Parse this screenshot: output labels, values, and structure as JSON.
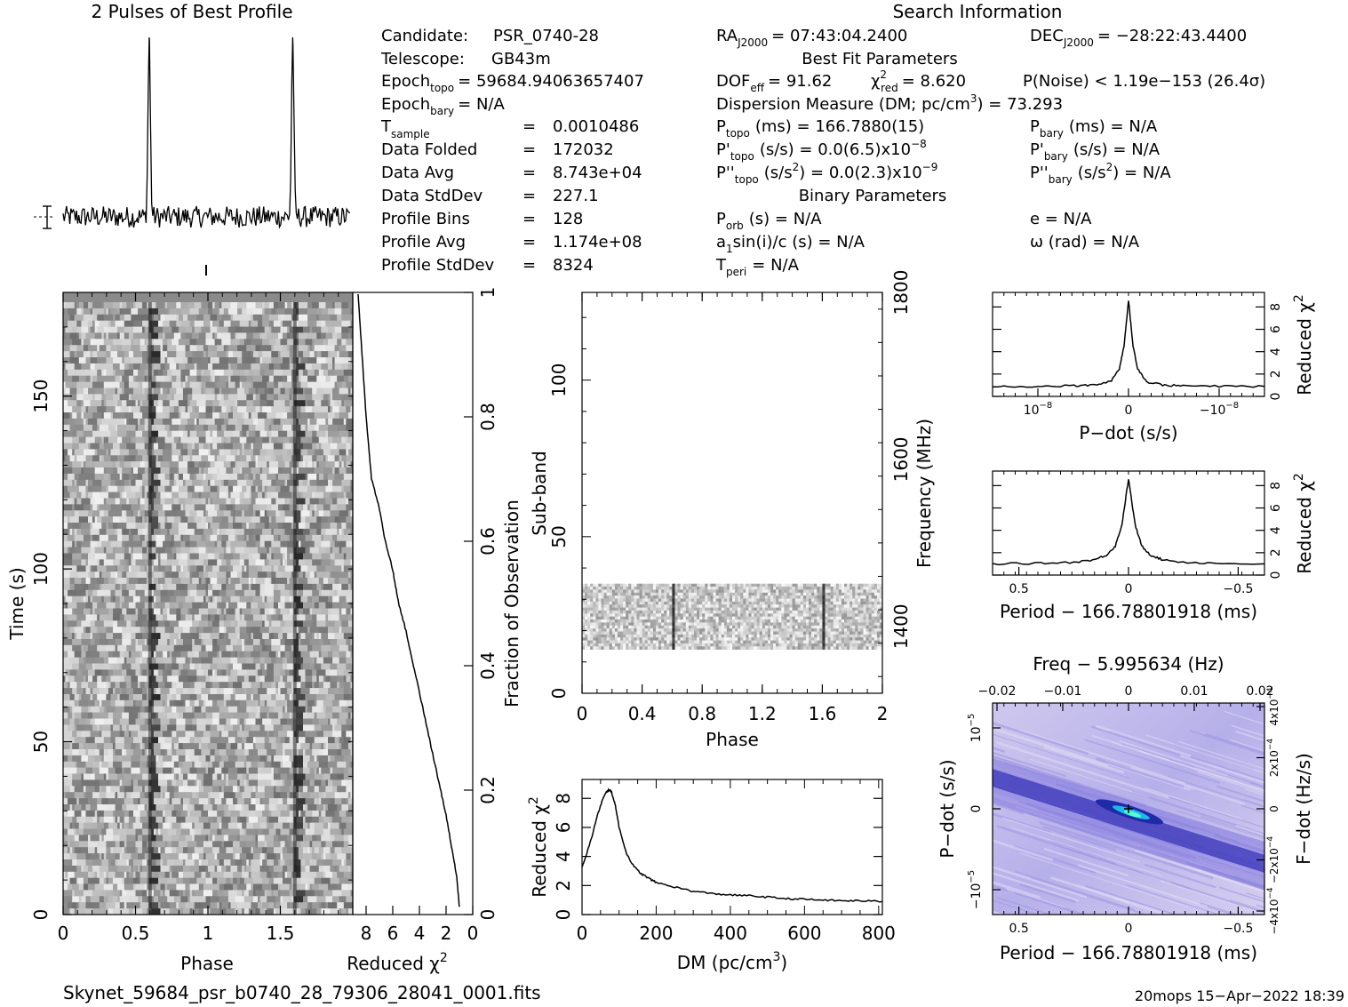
{
  "profile_panel": {
    "title": "2 Pulses of Best Profile"
  },
  "search_info": {
    "title": "Search Information",
    "candidate": {
      "label": "Candidate:",
      "value": "PSR_0740-28"
    },
    "telescope": {
      "label": "Telescope:",
      "value": "GB43m"
    },
    "epoch_topo": {
      "label": "Epoch",
      "sub": "topo",
      "value": "= 59684.94063657407"
    },
    "epoch_bary": {
      "label": "Epoch",
      "sub": "bary",
      "value": "= N/A"
    },
    "t_sample": {
      "label": "T",
      "sub": "sample",
      "eq": "=",
      "value": "0.0010486"
    },
    "data_folded": {
      "label": "Data Folded",
      "eq": "=",
      "value": "172032"
    },
    "data_avg": {
      "label": "Data Avg",
      "eq": "=",
      "value": "8.743e+04"
    },
    "data_stddev": {
      "label": "Data StdDev",
      "eq": "=",
      "value": "227.1"
    },
    "profile_bins": {
      "label": "Profile Bins",
      "eq": "=",
      "value": "128"
    },
    "profile_avg": {
      "label": "Profile Avg",
      "eq": "=",
      "value": "1.174e+08"
    },
    "profile_stddev": {
      "label": "Profile StdDev",
      "eq": "=",
      "value": "8324"
    },
    "ra": {
      "label": "RA",
      "sub": "J2000",
      "value": "= 07:43:04.2400"
    },
    "dec": {
      "label": "DEC",
      "sub": "J2000",
      "value": "= −28:22:43.4400"
    },
    "best_fit_title": "Best Fit Parameters",
    "dof": {
      "label": "DOF",
      "sub": "eff",
      "value": "= 91.62"
    },
    "chi2": {
      "label": "χ",
      "sup": "2",
      "sub": "red",
      "value": "= 8.620"
    },
    "pnoise": {
      "value": "P(Noise) < 1.19e−153  (26.4σ)"
    },
    "dm_line": {
      "text": "Dispersion Measure (DM; pc/cm",
      "sup": "3",
      "tail": ") = 73.293"
    },
    "ptopo": {
      "label": "P",
      "sub": "topo",
      "value": "(ms) =  166.7880(15)"
    },
    "pbary": {
      "label": "P",
      "sub": "bary",
      "value": "(ms) = N/A"
    },
    "pdtopo": {
      "label": "P'",
      "sub": "topo",
      "value": "(s/s) = 0.0(6.5)x10",
      "sup": "−8"
    },
    "pdbary": {
      "label": "P'",
      "sub": "bary",
      "value": "(s/s) = N/A"
    },
    "pddtopo": {
      "label": "P''",
      "sub": "topo",
      "value": "(s/s",
      "sup": "2",
      "tail": ") = 0.0(2.3)x10",
      "sup2": "−9"
    },
    "pddbary": {
      "label": "P''",
      "sub": "bary",
      "value": "(s/s",
      "sup": "2",
      "tail": ") = N/A"
    },
    "binary_title": "Binary Parameters",
    "porb": {
      "label": "P",
      "sub": "orb",
      "value": "(s) = N/A"
    },
    "e": {
      "value": "e = N/A"
    },
    "a1sini": {
      "label": "a",
      "sub": "1",
      "value": "sin(i)/c (s) = N/A"
    },
    "omega": {
      "value": "ω (rad) = N/A"
    },
    "tperi": {
      "label": "T",
      "sub": "peri",
      "value": "= N/A"
    }
  },
  "footer": {
    "filename": "Skynet_59684_psr_b0740_28_79306_28041_0001.fits",
    "stamp": "20mops 15−Apr−2022 18:39"
  },
  "chart_data": [
    {
      "name": "best-profile",
      "type": "line",
      "title": "2 Pulses of Best Profile",
      "x": [
        0.0,
        0.1,
        0.2,
        0.3,
        0.4,
        0.5,
        0.55,
        0.58,
        0.6,
        0.62,
        0.65,
        0.7,
        0.8,
        0.9,
        1.0,
        1.1,
        1.2,
        1.3,
        1.4,
        1.5,
        1.55,
        1.58,
        1.6,
        1.62,
        1.65,
        1.7,
        1.8,
        1.9,
        2.0
      ],
      "y": [
        0.0,
        0.03,
        -0.02,
        0.04,
        -0.03,
        0.02,
        0.08,
        0.7,
        1.0,
        0.6,
        0.05,
        -0.02,
        0.03,
        -0.04,
        0.0,
        0.03,
        -0.02,
        0.04,
        -0.03,
        0.02,
        0.08,
        0.7,
        1.0,
        0.6,
        0.05,
        -0.02,
        0.03,
        -0.04,
        0.0
      ],
      "xlim": [
        0,
        2
      ]
    },
    {
      "name": "time-phase",
      "type": "heatmap",
      "xlabel": "Phase",
      "ylabel": "Time (s)",
      "x_ticks": [
        "0",
        "0.5",
        "1",
        "1.5"
      ],
      "y_ticks": [
        "0",
        "50",
        "100",
        "150"
      ],
      "xlim": [
        0,
        2
      ],
      "ylim": [
        0,
        180
      ],
      "pulse_phases": [
        0.6,
        1.6
      ]
    },
    {
      "name": "time-reduced-chi2",
      "type": "line",
      "xlabel": "Reduced χ",
      "xlabel_sup": "2",
      "ylabel": "Fraction of Observation",
      "x_ticks": [
        "8",
        "6",
        "4",
        "2",
        "0"
      ],
      "y_ticks": [
        "0",
        "0.2",
        "0.4",
        "0.6",
        "0.8",
        "1"
      ],
      "xlim": [
        9,
        0
      ],
      "ylim": [
        0,
        1
      ],
      "x": [
        1.0,
        1.2,
        1.6,
        2.0,
        2.5,
        3.0,
        3.5,
        4.0,
        4.5,
        5.0,
        5.6,
        6.0,
        6.6,
        7.0,
        7.6,
        8.0,
        8.3,
        8.6
      ],
      "y": [
        0.0,
        0.05,
        0.1,
        0.15,
        0.2,
        0.25,
        0.3,
        0.35,
        0.4,
        0.45,
        0.5,
        0.55,
        0.6,
        0.65,
        0.7,
        0.8,
        0.9,
        1.0
      ]
    },
    {
      "name": "subband-phase",
      "type": "heatmap",
      "xlabel": "Phase",
      "ylabel": "Sub-band",
      "y2label": "Frequency (MHz)",
      "x_ticks": [
        "0",
        "0.4",
        "0.8",
        "1.2",
        "1.6",
        "2"
      ],
      "y_ticks": [
        "0",
        "50",
        "100"
      ],
      "y2_ticks": [
        "1400",
        "1600",
        "1800"
      ],
      "xlim": [
        0,
        2
      ],
      "ylim": [
        0,
        128
      ],
      "y2lim": [
        1320,
        1800
      ],
      "populated_subbands": [
        14,
        35
      ],
      "pulse_phases": [
        0.6,
        1.6
      ]
    },
    {
      "name": "dm-reduced-chi2",
      "type": "line",
      "xlabel": "DM (pc/cm",
      "xlabel_sup": "3",
      "xlabel_tail": ")",
      "ylabel": "Reduced χ",
      "ylabel_sup": "2",
      "x_ticks": [
        "0",
        "200",
        "400",
        "600",
        "800"
      ],
      "y_ticks": [
        "0",
        "2",
        "4",
        "6",
        "8"
      ],
      "xlim": [
        0,
        810
      ],
      "ylim": [
        0,
        9.3
      ],
      "x": [
        0,
        10,
        25,
        40,
        55,
        65,
        73,
        80,
        90,
        100,
        120,
        140,
        160,
        180,
        200,
        250,
        300,
        350,
        400,
        450,
        500,
        550,
        600,
        650,
        700,
        750,
        810
      ],
      "y": [
        3.3,
        4.0,
        5.2,
        6.7,
        7.9,
        8.4,
        8.6,
        8.4,
        7.5,
        6.0,
        4.2,
        3.3,
        2.8,
        2.5,
        2.2,
        1.9,
        1.6,
        1.45,
        1.35,
        1.3,
        1.2,
        1.1,
        1.05,
        1.0,
        0.95,
        0.95,
        0.9
      ]
    },
    {
      "name": "pdot-reduced-chi2",
      "type": "line",
      "xlabel": "P−dot (s/s)",
      "ylabel": "Reduced χ",
      "ylabel_sup": "2",
      "x_ticks": [
        "10",
        "0",
        "−10"
      ],
      "x_ticks_sup": [
        "−8",
        "",
        "−8"
      ],
      "y_ticks": [
        "0",
        "2",
        "4",
        "6",
        "8"
      ],
      "xlim": [
        15,
        -15
      ],
      "ylim": [
        0,
        9.3
      ],
      "x": [
        15,
        10,
        6,
        4,
        2,
        1,
        0.5,
        0,
        -0.5,
        -1,
        -2,
        -4,
        -6,
        -10,
        -15
      ],
      "y": [
        0.9,
        0.9,
        0.95,
        1.0,
        1.3,
        2.5,
        4.5,
        8.6,
        4.5,
        2.5,
        1.3,
        1.0,
        0.95,
        0.9,
        0.9
      ]
    },
    {
      "name": "period-reduced-chi2",
      "type": "line",
      "xlabel": "Period − 166.78801918 (ms)",
      "ylabel": "Reduced χ",
      "ylabel_sup": "2",
      "x_ticks": [
        "0.5",
        "0",
        "−0.5"
      ],
      "y_ticks": [
        "0",
        "2",
        "4",
        "6",
        "8"
      ],
      "xlim": [
        0.62,
        -0.62
      ],
      "ylim": [
        0,
        9.3
      ],
      "x": [
        0.62,
        0.4,
        0.25,
        0.15,
        0.1,
        0.06,
        0.03,
        0.0,
        -0.03,
        -0.06,
        -0.1,
        -0.15,
        -0.25,
        -0.4,
        -0.62
      ],
      "y": [
        1.0,
        1.05,
        1.15,
        1.4,
        1.8,
        2.6,
        4.5,
        8.6,
        4.5,
        2.6,
        1.8,
        1.4,
        1.15,
        1.05,
        1.0
      ]
    },
    {
      "name": "period-pdot-plane",
      "type": "heatmap",
      "xlabel": "Period − 166.78801918 (ms)",
      "ylabel": "P−dot (s/s)",
      "x2label": "Freq − 5.995634 (Hz)",
      "y2label": "F−dot (Hz/s)",
      "x_ticks": [
        "0.5",
        "0",
        "−0.5"
      ],
      "x2_ticks": [
        "−0.02",
        "−0.01",
        "0",
        "0.01",
        "0.02"
      ],
      "y_ticks": [
        "10",
        "0",
        "−10"
      ],
      "y_ticks_sup": [
        "−5",
        "",
        "−5"
      ],
      "y2_ticks": [
        "−4x10",
        "−2x10",
        "0",
        "2x10",
        "4x10"
      ],
      "y2_ticks_sup": [
        "−4",
        "−4",
        "",
        "−4",
        "−4"
      ],
      "xlim": [
        0.62,
        -0.62
      ],
      "best": [
        0,
        0
      ]
    }
  ]
}
